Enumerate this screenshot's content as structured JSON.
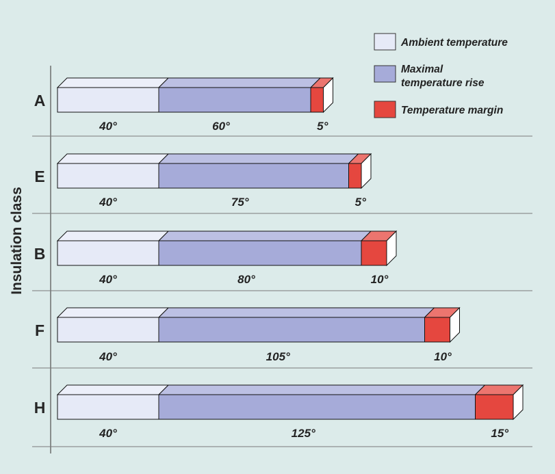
{
  "chart_data": {
    "type": "bar",
    "stacked": true,
    "orientation": "horizontal",
    "ylabel": "Insulation class",
    "categories": [
      "A",
      "E",
      "B",
      "F",
      "H"
    ],
    "series": [
      {
        "name": "Ambient temperature",
        "color": "#e6eaf7",
        "values": [
          40,
          40,
          40,
          40,
          40
        ]
      },
      {
        "name": "Maximal temperature rise",
        "color": "#a6abd9",
        "values": [
          60,
          75,
          80,
          105,
          125
        ]
      },
      {
        "name": "Temperature margin",
        "color": "#e5473f",
        "values": [
          5,
          5,
          10,
          10,
          15
        ]
      }
    ],
    "value_labels": [
      [
        "40°",
        "60°",
        "5°"
      ],
      [
        "40°",
        "75°",
        "5°"
      ],
      [
        "40°",
        "80°",
        "10°"
      ],
      [
        "40°",
        "105°",
        "10°"
      ],
      [
        "40°",
        "125°",
        "15°"
      ]
    ],
    "legend": {
      "position": "top-right",
      "items": [
        {
          "label_lines": [
            "Ambient temperature"
          ],
          "color": "#e6eaf7"
        },
        {
          "label_lines": [
            "Maximal",
            "temperature rise"
          ],
          "color": "#a6abd9"
        },
        {
          "label_lines": [
            "Temperature margin"
          ],
          "color": "#e5473f"
        }
      ]
    },
    "background": "#dcebea",
    "grid": "row-dividers"
  }
}
